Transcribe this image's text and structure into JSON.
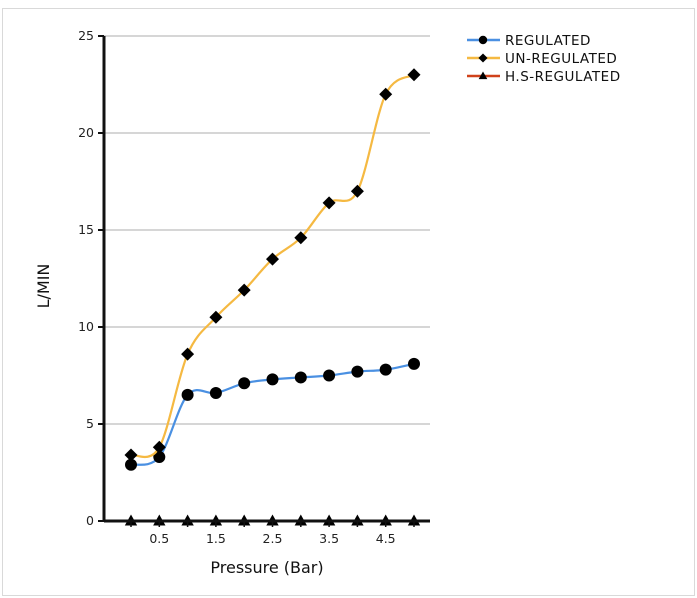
{
  "chart_data": {
    "type": "line",
    "xlabel": "Pressure (Bar)",
    "ylabel": "L/MIN",
    "xlim": [
      0,
      5.25
    ],
    "ylim": [
      0,
      25
    ],
    "x_ticks": [
      0.5,
      1.5,
      2.5,
      3.5,
      4.5
    ],
    "y_ticks": [
      0,
      5,
      10,
      15,
      20,
      25
    ],
    "x": [
      0,
      0.5,
      1,
      1.5,
      2,
      2.5,
      3,
      3.5,
      4,
      4.5,
      5
    ],
    "grid": true,
    "legend_position": "top-right",
    "series": [
      {
        "name": "REGULATED",
        "color": "#4a90e2",
        "marker": "circle",
        "values": [
          2.9,
          3.3,
          6.5,
          6.6,
          7.1,
          7.3,
          7.4,
          7.5,
          7.7,
          7.8,
          8.1
        ]
      },
      {
        "name": "UN-REGULATED",
        "color": "#f5b942",
        "marker": "diamond",
        "values": [
          3.4,
          3.8,
          8.6,
          10.5,
          11.9,
          13.5,
          14.6,
          16.4,
          17.0,
          22.0,
          23.0
        ]
      },
      {
        "name": "H.S-REGULATED",
        "color": "#d0421b",
        "marker": "triangle",
        "values": [
          0,
          0,
          0,
          0,
          0,
          0,
          0,
          0,
          0,
          0,
          0
        ]
      }
    ]
  }
}
